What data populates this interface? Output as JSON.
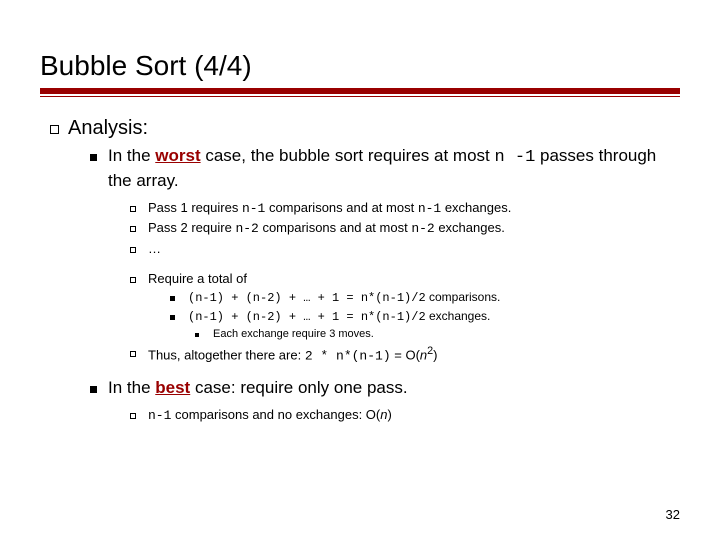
{
  "title": "Bubble Sort (4/4)",
  "page_number": "32",
  "colors": {
    "accent": "#990000",
    "text": "#000000",
    "background": "#ffffff"
  },
  "analysis_label": "Analysis:",
  "worst": {
    "pre": "In the ",
    "emph": "worst",
    "post1": " case, the bubble sort requires at most ",
    "code1": "n -1",
    "post2": " passes through the array."
  },
  "pass1": {
    "t1": "Pass 1 requires ",
    "c1": "n-1",
    "t2": " comparisons and at most ",
    "c2": "n-1",
    "t3": " exchanges."
  },
  "pass2": {
    "t1": "Pass 2 require ",
    "c1": "n-2",
    "t2": " comparisons and at most ",
    "c2": "n-2",
    "t3": " exchanges."
  },
  "ellipsis": "…",
  "require_total": "Require a total of",
  "comp_line": {
    "code": "(n-1) + (n-2) + … + 1 = n*(n-1)/2",
    "suffix": " comparisons."
  },
  "exch_line": {
    "code": "(n-1) + (n-2) + … + 1 = n*(n-1)/2",
    "suffix": " exchanges."
  },
  "each_exchange": "Each exchange require 3 moves.",
  "thus": {
    "t1": "Thus, altogether there are: ",
    "code": "2 * n*(n-1)",
    "t2": " = O(",
    "n": "n",
    "sup": "2",
    "t3": ")"
  },
  "best": {
    "pre": "In the ",
    "emph": "best",
    "post": " case: require only one pass."
  },
  "best_detail": {
    "code": "n-1",
    "t1": " comparisons and no exchanges: O(",
    "n": "n",
    "t2": ")"
  }
}
